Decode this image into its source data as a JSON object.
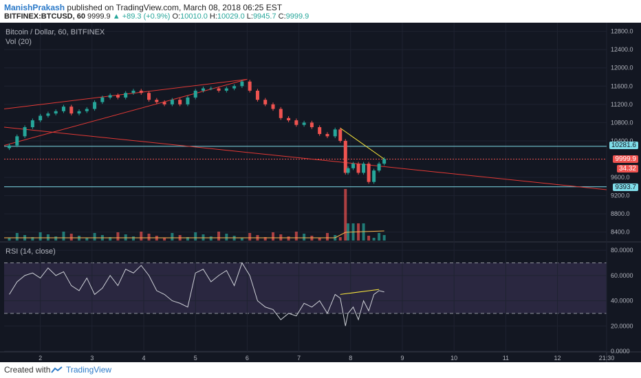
{
  "header": {
    "author": "ManishPrakash",
    "published": "published on TradingView.com, March 08, 2018 06:25 EST",
    "symbol": "BITFINEX:BTCUSD, 60",
    "last": "9999.9",
    "change": "▲ +89.3 (+0.9%)",
    "o_label": "O:",
    "o_value": "10010.0",
    "h_label": "H:",
    "h_value": "10029.0",
    "l_label": "L:",
    "l_value": "9945.7",
    "c_label": "C:",
    "c_value": "9999.9"
  },
  "chart_data": {
    "type": "line",
    "title": "Bitcoin / Dollar, 60, BITFINEX",
    "study_label": "Vol (20)",
    "ylim": [
      8200,
      12900
    ],
    "price_ticks": [
      "12800.0",
      "12400.0",
      "12000.0",
      "11600.0",
      "11200.0",
      "10800.0",
      "10400.0",
      "9600.0",
      "9200.0",
      "8800.0",
      "8400.0"
    ],
    "x_ticks": [
      "2",
      "3",
      "4",
      "5",
      "6",
      "7",
      "8",
      "9",
      "10",
      "11",
      "12",
      "21:30"
    ],
    "x": [
      1.4,
      1.55,
      1.7,
      1.85,
      2.0,
      2.15,
      2.3,
      2.45,
      2.6,
      2.75,
      2.9,
      3.05,
      3.2,
      3.35,
      3.5,
      3.65,
      3.8,
      3.95,
      4.1,
      4.25,
      4.4,
      4.55,
      4.7,
      4.85,
      5.0,
      5.15,
      5.3,
      5.45,
      5.6,
      5.75,
      5.9,
      6.05,
      6.2,
      6.35,
      6.5,
      6.65,
      6.8,
      6.95,
      7.1,
      7.25,
      7.4,
      7.55,
      7.7,
      7.8,
      7.9,
      7.95,
      8.05,
      8.15,
      8.25,
      8.35,
      8.45,
      8.55,
      8.65
    ],
    "price_series": [
      {
        "name": "BTCUSD",
        "values": [
          10300,
          10500,
          10700,
          10850,
          10950,
          11000,
          11050,
          11150,
          11000,
          11050,
          11100,
          11250,
          11350,
          11400,
          11350,
          11450,
          11500,
          11450,
          11300,
          11250,
          11200,
          11300,
          11200,
          11350,
          11500,
          11550,
          11550,
          11500,
          11550,
          11600,
          11700,
          11500,
          11300,
          11200,
          11100,
          10900,
          10850,
          10750,
          10800,
          10700,
          10550,
          10500,
          10650,
          10400,
          9700,
          9800,
          9900,
          9700,
          9900,
          9500,
          9750,
          9900,
          10000
        ]
      }
    ],
    "price_tags": {
      "upper_level": "10281.6",
      "current": "9999.9",
      "countdown": "34.32",
      "lower_level": "9393.7"
    },
    "rsi": {
      "label": "RSI (14, close)",
      "ylim": [
        0,
        85
      ],
      "ticks": [
        "80.0000",
        "60.0000",
        "40.0000",
        "20.0000",
        "0.0000"
      ],
      "bands": [
        30,
        70
      ],
      "values": [
        45,
        55,
        60,
        62,
        58,
        66,
        60,
        63,
        52,
        48,
        58,
        45,
        50,
        60,
        52,
        65,
        62,
        68,
        60,
        48,
        45,
        40,
        38,
        35,
        62,
        65,
        55,
        60,
        64,
        52,
        70,
        60,
        40,
        35,
        33,
        25,
        30,
        28,
        38,
        35,
        40,
        30,
        45,
        42,
        20,
        30,
        35,
        25,
        40,
        32,
        45,
        48,
        47
      ]
    },
    "colors": {
      "up": "#26a69a",
      "down": "#ef5350",
      "trend": "#e53935",
      "level": "#80deea",
      "yellow": "#ffeb3b",
      "rsi_line": "#cfd2d8",
      "rsi_band": "#9575cd"
    }
  },
  "footer": {
    "created_with": "Created with",
    "brand": "TradingView"
  }
}
